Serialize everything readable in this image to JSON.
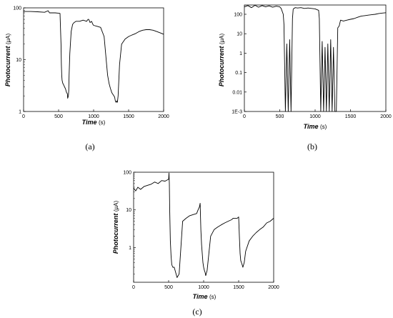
{
  "chart_data": [
    {
      "type": "line",
      "panel_label": "(a)",
      "xlabel": "Time",
      "xunit": "(s)",
      "ylabel": "Photocurrent",
      "yunit": "(μA)",
      "xlim": [
        0,
        2000
      ],
      "ylim": [
        1,
        100
      ],
      "yscale": "log",
      "xticks": [
        "0",
        "500",
        "1000",
        "1500",
        "2000"
      ],
      "yticks": [
        "1",
        "10",
        "100"
      ],
      "series": [
        {
          "x": [
            0,
            100,
            200,
            300,
            350,
            370,
            400,
            450,
            500,
            520,
            535,
            540,
            545,
            550,
            560,
            570,
            580,
            590,
            600,
            610,
            615,
            625,
            630,
            640,
            645,
            650,
            660,
            680,
            700,
            720,
            750,
            800,
            850,
            900,
            920,
            930,
            950,
            970,
            990,
            1000,
            1050,
            1100,
            1150,
            1180,
            1200,
            1220,
            1240,
            1260,
            1280,
            1300,
            1310,
            1320,
            1330,
            1340,
            1350,
            1370,
            1400,
            1450,
            1500,
            1550,
            1600,
            1650,
            1700,
            1750,
            1800,
            1850,
            1900,
            1950,
            2000
          ],
          "y": [
            85,
            85,
            84,
            82,
            88,
            80,
            80,
            80,
            79,
            78,
            20,
            8,
            5,
            4,
            3.5,
            3.3,
            3.1,
            2.9,
            2.7,
            2.4,
            2.3,
            2.2,
            1.8,
            2.0,
            2.5,
            5,
            13,
            35,
            48,
            52,
            55,
            55,
            58,
            55,
            60,
            60,
            52,
            55,
            48,
            46,
            44,
            42,
            28,
            10,
            5,
            3.5,
            2.8,
            2.3,
            2.1,
            1.9,
            1.6,
            1.5,
            1.6,
            1.5,
            2.0,
            8,
            20,
            25,
            28,
            30,
            32,
            35,
            37,
            38,
            38,
            37,
            35,
            33,
            31
          ]
        }
      ]
    },
    {
      "type": "line",
      "panel_label": "(b)",
      "xlabel": "Time",
      "xunit": "(s)",
      "ylabel": "Photocurrent",
      "yunit": "(μA)",
      "xlim": [
        0,
        2000
      ],
      "ylim": [
        0.001,
        300
      ],
      "yscale": "log",
      "xticks": [
        "0",
        "500",
        "1000",
        "1500",
        "2000"
      ],
      "yticks": [
        "1E-3",
        "0.01",
        "0.1",
        "1",
        "10",
        "100"
      ],
      "series": [
        {
          "x": [
            0,
            50,
            100,
            150,
            200,
            250,
            300,
            350,
            400,
            450,
            500,
            520,
            550,
            560,
            580,
            600,
            620,
            640,
            660,
            680,
            690,
            700,
            720,
            750,
            800,
            850,
            900,
            950,
            1000,
            1050,
            1060,
            1080,
            1100,
            1120,
            1140,
            1160,
            1180,
            1200,
            1220,
            1240,
            1260,
            1280,
            1300,
            1320,
            1340,
            1360,
            1400,
            1450,
            1500,
            1550,
            1600,
            1650,
            1700,
            1750,
            1800,
            1850,
            1900,
            1950,
            2000
          ],
          "y": [
            240,
            280,
            220,
            290,
            230,
            280,
            240,
            270,
            230,
            260,
            240,
            200,
            100,
            30,
            0.001,
            3,
            0.001,
            5,
            0.001,
            60,
            180,
            200,
            220,
            210,
            220,
            200,
            210,
            200,
            190,
            160,
            60,
            0.001,
            4,
            0.001,
            2,
            0.001,
            3,
            0.001,
            5,
            0.001,
            2,
            0.001,
            0.001,
            20,
            25,
            50,
            45,
            50,
            55,
            60,
            70,
            80,
            85,
            90,
            95,
            100,
            110,
            115,
            120
          ]
        }
      ]
    },
    {
      "type": "line",
      "panel_label": "(c)",
      "xlabel": "Time",
      "xunit": "(s)",
      "ylabel": "Photocurrent",
      "yunit": "(μA)",
      "xlim": [
        0,
        2000
      ],
      "ylim": [
        0.12,
        100
      ],
      "yscale": "log",
      "xticks": [
        "0",
        "500",
        "1000",
        "1500",
        "2000"
      ],
      "yticks": [
        "1",
        "10",
        "100"
      ],
      "series": [
        {
          "x": [
            0,
            30,
            60,
            100,
            150,
            200,
            250,
            300,
            350,
            400,
            450,
            480,
            500,
            505,
            510,
            515,
            525,
            535,
            545,
            560,
            580,
            600,
            620,
            650,
            700,
            750,
            800,
            850,
            900,
            920,
            940,
            950,
            960,
            970,
            990,
            1000,
            1010,
            1020,
            1030,
            1050,
            1100,
            1150,
            1200,
            1250,
            1300,
            1350,
            1400,
            1420,
            1450,
            1480,
            1500,
            1510,
            1520,
            1530,
            1540,
            1550,
            1560,
            1580,
            1600,
            1650,
            1700,
            1750,
            1800,
            1850,
            1900,
            1950,
            2000
          ],
          "y": [
            38,
            32,
            40,
            35,
            42,
            45,
            48,
            55,
            50,
            60,
            58,
            62,
            65,
            95,
            50,
            10,
            1.5,
            0.6,
            0.35,
            0.3,
            0.3,
            0.22,
            0.16,
            0.2,
            5,
            6,
            7,
            7.5,
            8,
            10,
            12,
            15,
            3,
            1.2,
            0.4,
            0.3,
            0.25,
            0.22,
            0.18,
            0.25,
            2,
            3,
            3.5,
            4,
            4.5,
            5,
            5.5,
            6,
            6,
            6,
            6.5,
            2,
            0.7,
            0.45,
            0.4,
            0.35,
            0.3,
            0.4,
            0.8,
            1.5,
            2,
            2.5,
            3,
            3.5,
            4.5,
            5,
            6
          ]
        }
      ]
    }
  ]
}
